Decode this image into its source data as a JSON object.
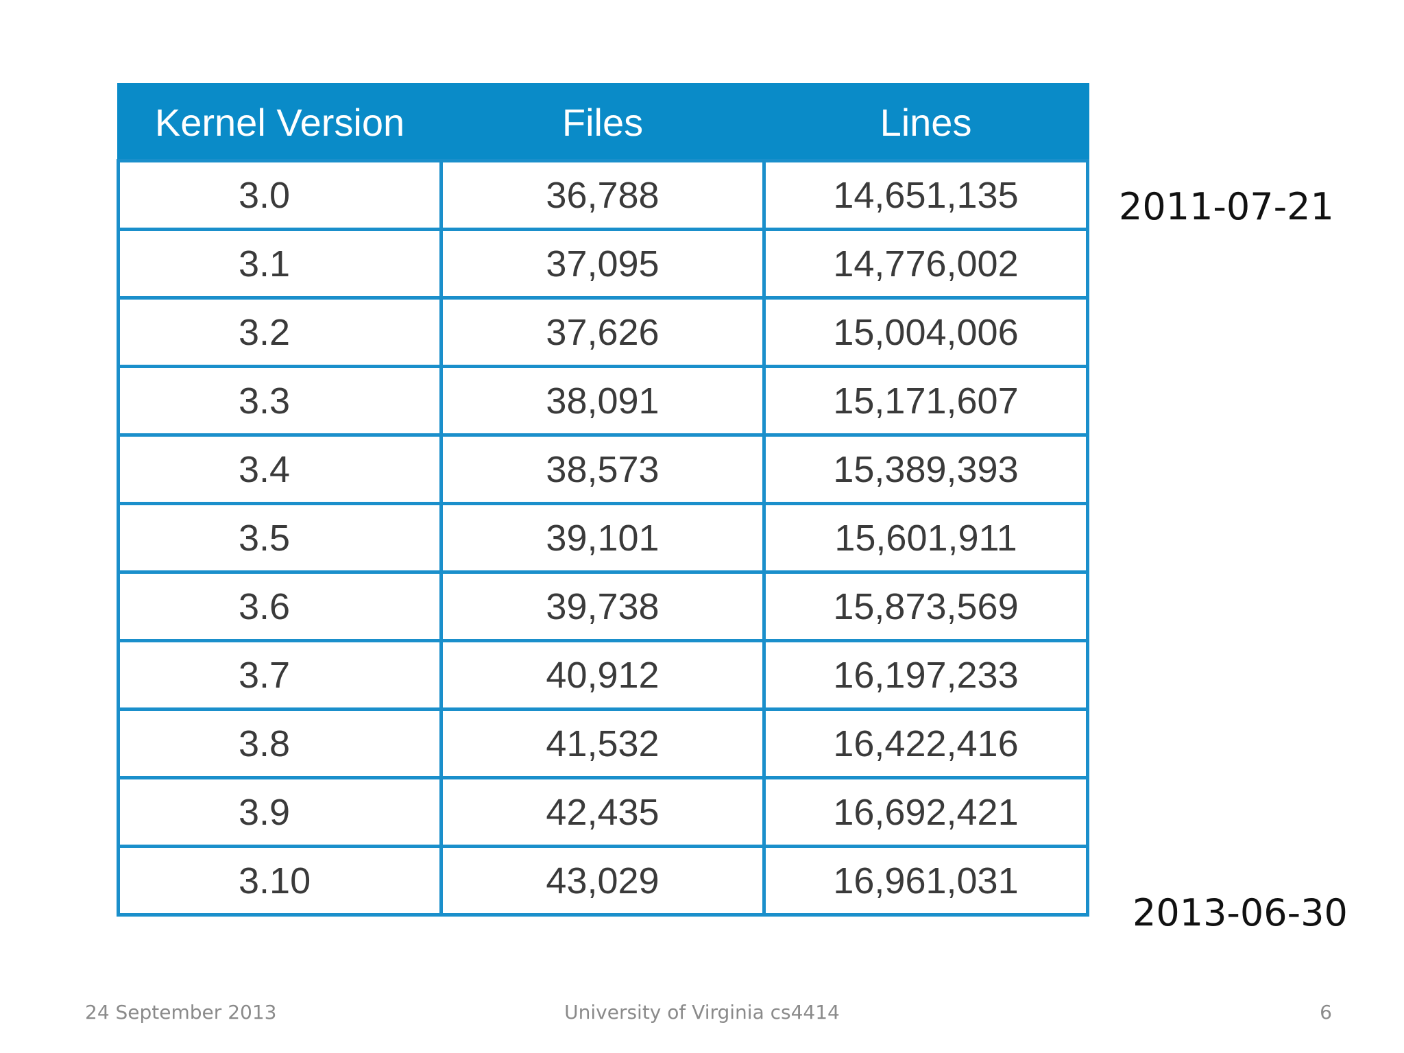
{
  "table": {
    "headers": [
      "Kernel Version",
      "Files",
      "Lines"
    ],
    "rows": [
      [
        "3.0",
        "36,788",
        "14,651,135"
      ],
      [
        "3.1",
        "37,095",
        "14,776,002"
      ],
      [
        "3.2",
        "37,626",
        "15,004,006"
      ],
      [
        "3.3",
        "38,091",
        "15,171,607"
      ],
      [
        "3.4",
        "38,573",
        "15,389,393"
      ],
      [
        "3.5",
        "39,101",
        "15,601,911"
      ],
      [
        "3.6",
        "39,738",
        "15,873,569"
      ],
      [
        "3.7",
        "40,912",
        "16,197,233"
      ],
      [
        "3.8",
        "41,532",
        "16,422,416"
      ],
      [
        "3.9",
        "42,435",
        "16,692,421"
      ],
      [
        "3.10",
        "43,029",
        "16,961,031"
      ]
    ]
  },
  "annotations": {
    "start_date": "2011-07-21",
    "end_date": "2013-06-30"
  },
  "footer": {
    "date": "24 September 2013",
    "course": "University of Virginia cs4414",
    "page_number": "6"
  },
  "colors": {
    "header_background": "#0a8bc8",
    "grid_line": "#1a8fcb"
  }
}
